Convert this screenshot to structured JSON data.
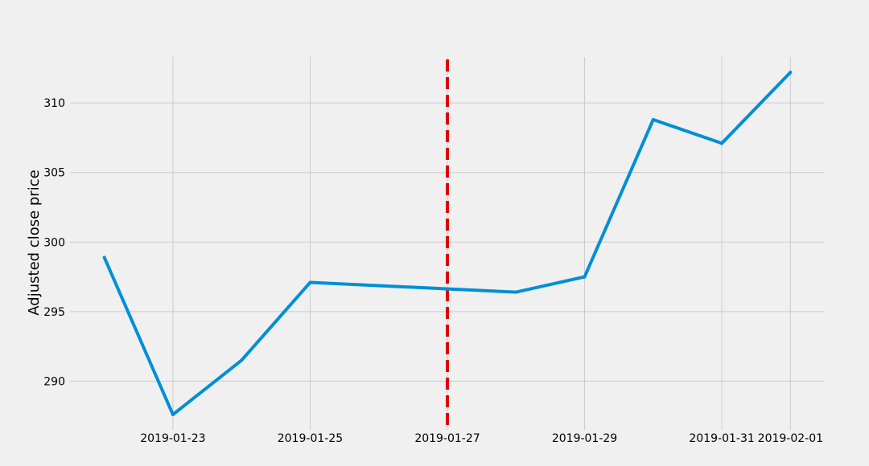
{
  "chart_data": {
    "type": "line",
    "title": "",
    "xlabel": "",
    "ylabel": "Adjusted close price",
    "x": [
      "2019-01-22",
      "2019-01-23",
      "2019-01-24",
      "2019-01-25",
      "2019-01-28",
      "2019-01-29",
      "2019-01-30",
      "2019-01-31",
      "2019-02-01"
    ],
    "xnum": [
      0,
      1,
      2,
      3,
      6,
      7,
      8,
      9,
      10
    ],
    "series": [
      {
        "name": "Adjusted close",
        "values": [
          298.9,
          287.6,
          291.5,
          297.1,
          296.4,
          297.5,
          308.8,
          307.1,
          312.2
        ]
      }
    ],
    "xlim": [
      -0.5,
      10.5
    ],
    "ylim": [
      286.5,
      313.3
    ],
    "xticks": [
      {
        "pos": 1,
        "label": "2019-01-23"
      },
      {
        "pos": 3,
        "label": "2019-01-25"
      },
      {
        "pos": 5,
        "label": "2019-01-27"
      },
      {
        "pos": 7,
        "label": "2019-01-29"
      },
      {
        "pos": 9,
        "label": "2019-01-31"
      },
      {
        "pos": 10,
        "label": "2019-02-01"
      }
    ],
    "yticks": [
      {
        "value": 290,
        "label": "290"
      },
      {
        "value": 295,
        "label": "295"
      },
      {
        "value": 300,
        "label": "300"
      },
      {
        "value": 305,
        "label": "305"
      },
      {
        "value": 310,
        "label": "310"
      }
    ],
    "vline": {
      "pos": 5,
      "label": "2019-01-27",
      "style": "dashed"
    },
    "grid": true,
    "colors": {
      "background": "#f0f0f0",
      "grid": "#cbcbcb",
      "line": "#008fd5",
      "vline": "#e00000",
      "text": "#000000"
    }
  }
}
